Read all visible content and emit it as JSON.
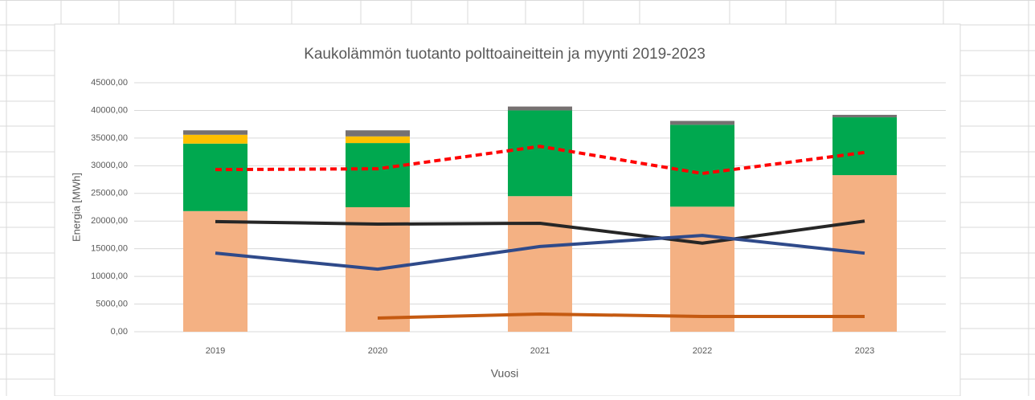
{
  "chart_data": {
    "type": "bar",
    "stacked": true,
    "title": "Kaukolämmön tuotanto polttoaineittein ja myynti 2019-2023",
    "y_label": "Energia [MWh]",
    "x_label": "Vuosi",
    "categories": [
      "2019",
      "2020",
      "2021",
      "2022",
      "2023"
    ],
    "ylim": [
      0,
      45000
    ],
    "yticks": [
      {
        "value": 0,
        "label": "0,00"
      },
      {
        "value": 5000,
        "label": "5000,00"
      },
      {
        "value": 10000,
        "label": "10000,00"
      },
      {
        "value": 15000,
        "label": "15000,00"
      },
      {
        "value": 20000,
        "label": "20000,00"
      },
      {
        "value": 25000,
        "label": "25000,00"
      },
      {
        "value": 30000,
        "label": "30000,00"
      },
      {
        "value": 35000,
        "label": "35000,00"
      },
      {
        "value": 40000,
        "label": "40000,00"
      },
      {
        "value": 45000,
        "label": "45000,00"
      }
    ],
    "grid": true,
    "series": [
      {
        "color": "#f4b183",
        "values": [
          21800,
          22500,
          24500,
          22600,
          28300
        ]
      },
      {
        "color": "#00a84f",
        "values": [
          12200,
          11600,
          15500,
          14800,
          10450
        ]
      },
      {
        "color": "#ffc000",
        "values": [
          1600,
          1200,
          0,
          0,
          0
        ]
      },
      {
        "color": "#767171",
        "values": [
          800,
          1100,
          700,
          700,
          450
        ]
      },
      {
        "type": "line",
        "dashed": true,
        "color": "#ff0000",
        "values": [
          29300,
          29450,
          33500,
          28600,
          32400
        ]
      },
      {
        "type": "line",
        "color": "#262626",
        "values": [
          19900,
          19450,
          19600,
          16000,
          20000
        ]
      },
      {
        "type": "line",
        "color": "#2f4a8a",
        "values": [
          14200,
          11300,
          15400,
          17400,
          14200
        ]
      },
      {
        "type": "line",
        "color": "#c55a11",
        "values": [
          null,
          2470,
          3200,
          2760,
          2760
        ]
      }
    ]
  }
}
